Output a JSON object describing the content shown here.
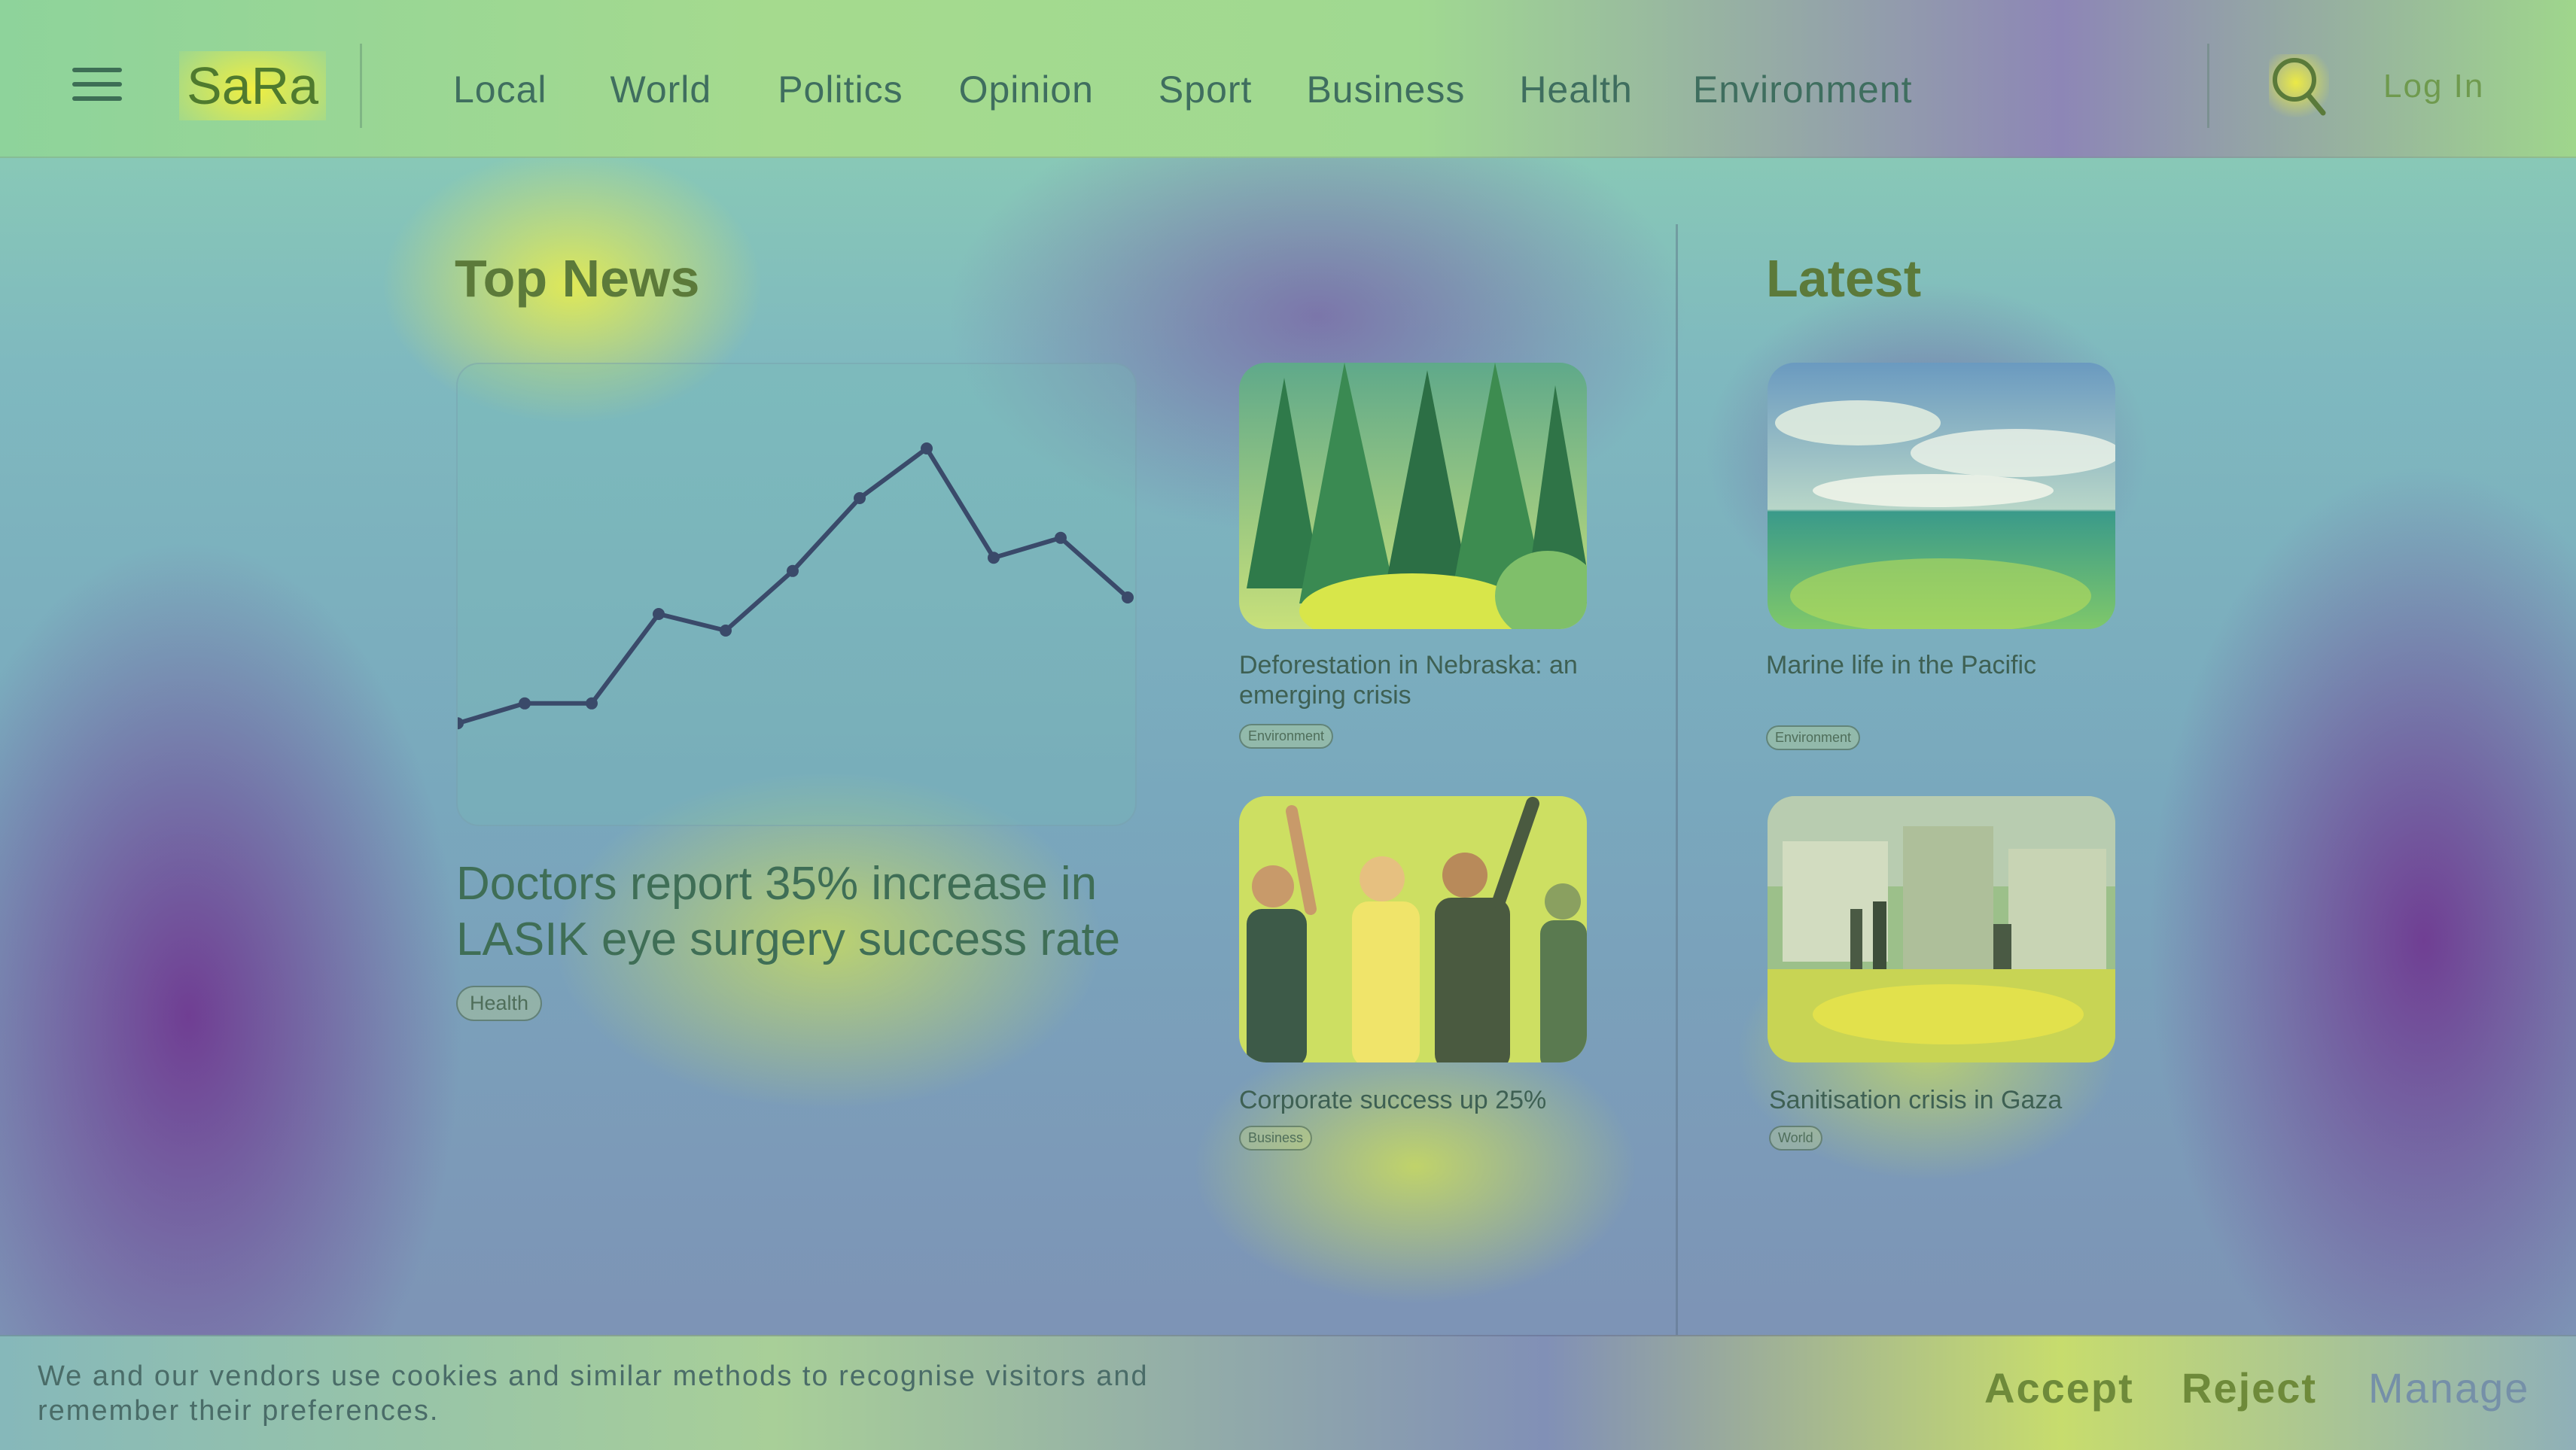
{
  "header": {
    "logo": "SaRa",
    "nav": [
      "Local",
      "World",
      "Politics",
      "Opinion",
      "Sport",
      "Business",
      "Health",
      "Environment"
    ],
    "login": "Log In",
    "icons": {
      "menu": "hamburger-menu-icon",
      "search": "search-icon"
    }
  },
  "top_news": {
    "title": "Top News",
    "feature": {
      "headline": "Doctors report 35% increase in LASIK eye surgery success rate",
      "tag": "Health",
      "sparkline": [
        12,
        18,
        18,
        45,
        40,
        58,
        80,
        95,
        62,
        68,
        50
      ]
    },
    "cards": [
      {
        "title": "Deforestation in Nebraska: an emerging crisis",
        "tag": "Environment",
        "image": "forest"
      },
      {
        "title": "Corporate success up 25%",
        "tag": "Business",
        "image": "celebrating-people"
      }
    ]
  },
  "latest": {
    "title": "Latest",
    "cards": [
      {
        "title": "Marine life in the Pacific",
        "tag": "Environment",
        "image": "ocean"
      },
      {
        "title": "Sanitisation crisis in Gaza",
        "tag": "World",
        "image": "flooded-camp"
      }
    ]
  },
  "cookie": {
    "text": "We and our vendors use cookies and similar methods to recognise visitors and remember their preferences.",
    "accept": "Accept",
    "reject": "Reject",
    "manage": "Manage"
  },
  "colors": {
    "accent": "#4f7a2e",
    "text": "#3f6e5f",
    "heatmap_hot": "#f0f046",
    "heatmap_cold": "#6e2d8c"
  }
}
